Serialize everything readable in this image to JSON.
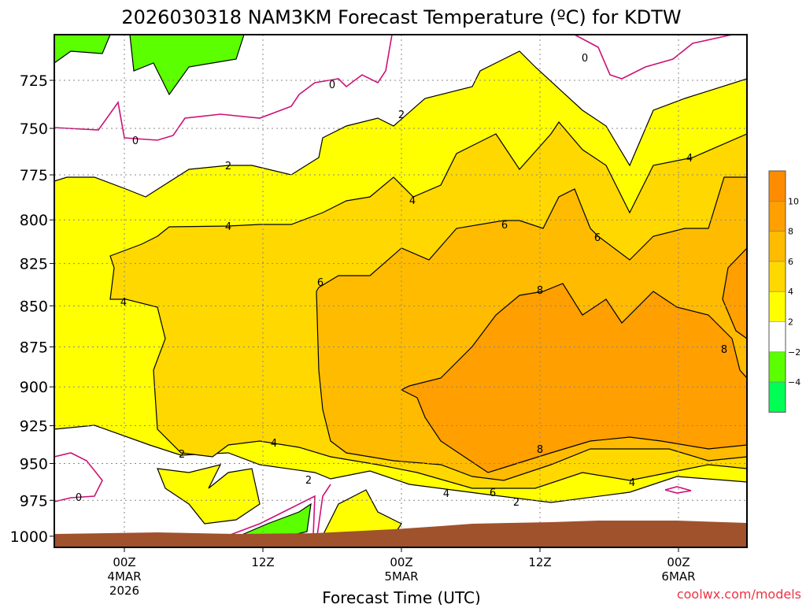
{
  "chart_data": {
    "type": "contour",
    "title": "2026030318 NAM3KM Forecast Temperature (ºC) for KDTW",
    "xlabel": "Forecast Time (UTC)",
    "ylabel": "Pressure (mb)",
    "credit": "coolwx.com/models",
    "y_ticks": [
      "725",
      "750",
      "775",
      "800",
      "825",
      "850",
      "875",
      "900",
      "925",
      "950",
      "975",
      "1000"
    ],
    "y_tick_values": [
      725,
      750,
      775,
      800,
      825,
      850,
      875,
      900,
      925,
      950,
      975,
      1000
    ],
    "ylim": [
      703,
      1020
    ],
    "x_ticks": [
      {
        "hours": 0,
        "lines": [
          "00Z",
          "4MAR",
          "2026"
        ]
      },
      {
        "hours": 12,
        "lines": [
          "12Z"
        ]
      },
      {
        "hours": 24,
        "lines": [
          "00Z",
          "5MAR"
        ]
      },
      {
        "hours": 36,
        "lines": [
          "12Z"
        ]
      },
      {
        "hours": 48,
        "lines": [
          "00Z",
          "6MAR"
        ]
      }
    ],
    "xlim_hours": [
      -6,
      54
    ],
    "grid": true,
    "contour_levels": [
      -4,
      -2,
      0,
      2,
      4,
      6,
      8,
      10
    ],
    "contour_labels": [
      "0",
      "0",
      "0",
      "0",
      "2",
      "2",
      "2",
      "2",
      "2",
      "4",
      "4",
      "4",
      "4",
      "4",
      "4",
      "4",
      "6",
      "6",
      "6",
      "6",
      "8",
      "8",
      "8"
    ],
    "legend": {
      "placement": "right",
      "labels": [
        "10",
        "8",
        "6",
        "4",
        "2",
        "−2",
        "−4"
      ],
      "colors": [
        "#ff8c00",
        "#ff9f00",
        "#ffbb00",
        "#ffd800",
        "#ffff00",
        "#ffffff",
        "#5cff00",
        "#00ff55"
      ]
    },
    "colors": {
      "terrain": "#a0522d",
      "zero_line": "#cc1177",
      "contour_line": "#000000"
    }
  }
}
